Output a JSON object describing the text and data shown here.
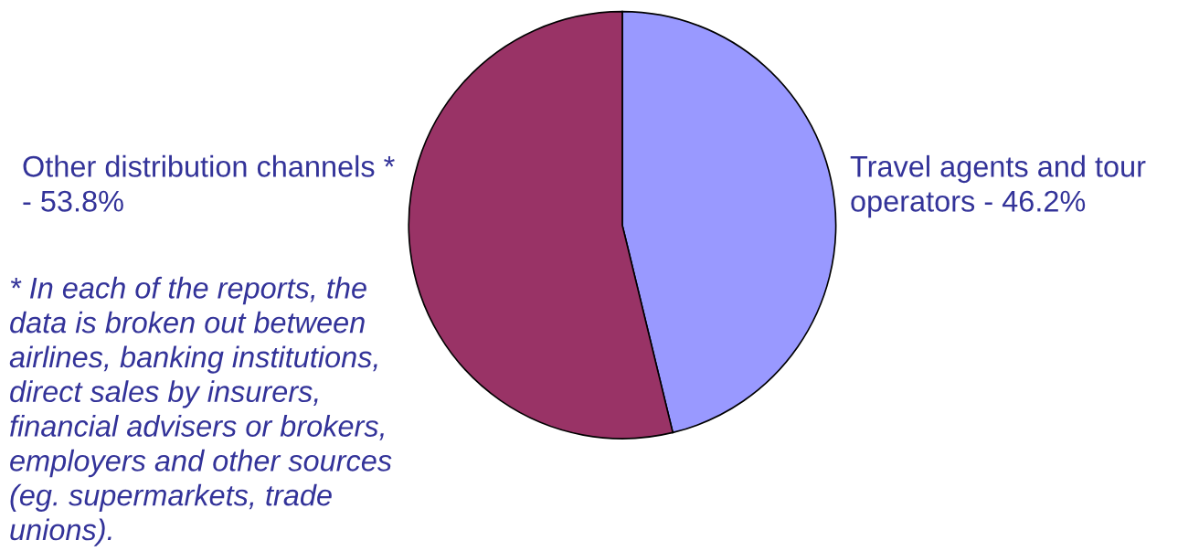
{
  "chart_data": {
    "type": "pie",
    "categories": [
      "Travel agents and tour operators -",
      "Other distribution channels * -"
    ],
    "values": [
      46.2,
      53.8
    ],
    "colors": [
      "#9999ff",
      "#993366"
    ],
    "value_labels": [
      "46.2%",
      "53.8%"
    ],
    "annotations": [
      "* In each of the reports, the data is broken out between airlines, banking institutions, direct sales by insurers, financial advisers or brokers, employers and other sources (eg. supermarkets, trade unions)."
    ]
  }
}
